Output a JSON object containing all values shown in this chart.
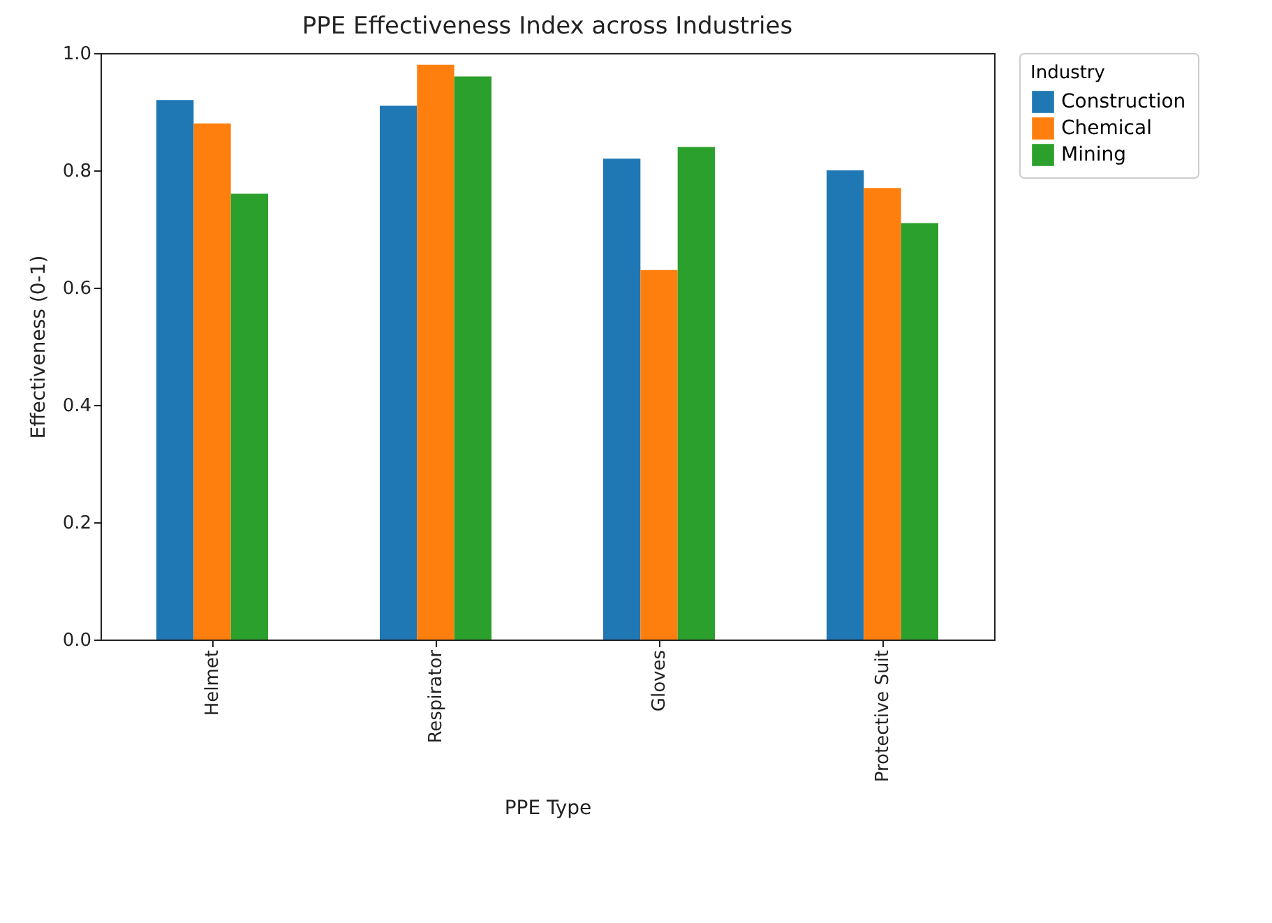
{
  "chart_data": {
    "type": "bar",
    "title": "PPE Effectiveness Index across Industries",
    "xlabel": "PPE Type",
    "ylabel": "Effectiveness (0-1)",
    "legend_title": "Industry",
    "categories": [
      "Helmet",
      "Respirator",
      "Gloves",
      "Protective Suit"
    ],
    "series": [
      {
        "name": "Construction",
        "color": "#1f77b4",
        "values": [
          0.92,
          0.91,
          0.82,
          0.8
        ]
      },
      {
        "name": "Chemical",
        "color": "#ff7f0e",
        "values": [
          0.88,
          0.98,
          0.63,
          0.77
        ]
      },
      {
        "name": "Mining",
        "color": "#2ca02c",
        "values": [
          0.76,
          0.96,
          0.84,
          0.71
        ]
      }
    ],
    "ylim": [
      0,
      1
    ],
    "yticks": [
      {
        "value": 0,
        "label": "0.0"
      },
      {
        "value": 0.2,
        "label": "0.2"
      },
      {
        "value": 0.4,
        "label": "0.4"
      },
      {
        "value": 0.6,
        "label": "0.6"
      },
      {
        "value": 0.8,
        "label": "0.8"
      },
      {
        "value": 1,
        "label": "1.0"
      }
    ],
    "grid": false,
    "legend": "top right"
  }
}
